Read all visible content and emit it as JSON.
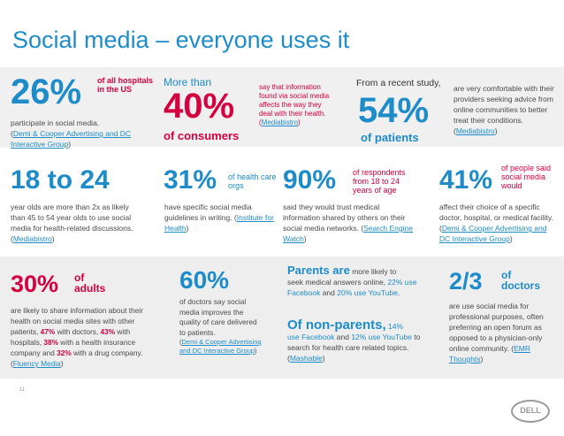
{
  "title": "Social media – everyone uses it",
  "s1": {
    "big": "26%",
    "side": "of all hospitals in the US",
    "desc": "participate in social media.",
    "src": "Demi & Cooper Advertising and DC Interactive Group",
    "open": "(",
    "close": ")"
  },
  "s2": {
    "more": "More than",
    "big": "40%",
    "sub": "of consumers",
    "desc": "say that information found via social media affects the way they deal with their health.",
    "src": "Mediabistro",
    "open": "(",
    "close": ")"
  },
  "s3": {
    "lead": "From a recent study,",
    "big": "54%",
    "sub": "of patients",
    "desc": "are very comfortable with their providers seeking advice from online communities to better treat their conditions.",
    "src": "Mediabistro",
    "open": "(",
    "close": ")"
  },
  "s4": {
    "big": "18 to 24",
    "desc": "year olds are more than 2x as likely than 45 to 54 year olds to use social media for health-related discussions.",
    "src": "Mediabistro",
    "open": "(",
    "close": ")"
  },
  "s5": {
    "big": "31%",
    "side": "of health care orgs",
    "desc": "have specific social media guidelines in writing.",
    "src": "Institute for Health",
    "open": "(",
    "close": ")"
  },
  "s6": {
    "big": "90%",
    "side": "of respondents from 18 to 24 years of age",
    "desc": "said they would trust medical information shared by others on their social media networks.",
    "src": "Search Engine Watch",
    "open": "(",
    "close": ")"
  },
  "s7": {
    "big": "41%",
    "side": "of people said social media would",
    "desc": "affect their choice of a specific doctor, hospital, or medical facility.",
    "src": "Demi & Cooper Advertising and DC Interactive Group",
    "open": "(",
    "close": ")"
  },
  "s8": {
    "big": "30%",
    "side1": "of",
    "side2": "adults",
    "t1": "are likely to share information about their health on social media sites with other patients, ",
    "b1": "47%",
    "t2": " with doctors, ",
    "b2": "43%",
    "t3": " with hospitals, ",
    "b3": "38%",
    "t4": " with a health insurance company and ",
    "b4": "32%",
    "t5": " with a drug company.",
    "src": "Fluency Media",
    "open": " (",
    "close": ")"
  },
  "s9": {
    "big": "60%",
    "desc": "of doctors say social media improves the quality of care delivered to patients.",
    "src": "Demi & Cooper Advertising and DC Interactive Group",
    "open": "(",
    "close": ")"
  },
  "s10": {
    "head": "Parents are",
    "head_tail": " more likely to",
    "t1": "seek medical answers online, ",
    "hl1": "22% use Facebook",
    "t2": " and ",
    "hl2": "20% use YouTube",
    "t3": ".",
    "head2": "Of non-parents,",
    "head2_tail": " 14%",
    "hl3": "use Facebook",
    "t4": " and ",
    "hl4": "12% use YouTube",
    "t5": " to search for health care related topics.",
    "src": "Mashable",
    "open": " (",
    "close": ")"
  },
  "s11": {
    "big": "2/3",
    "side1": "of",
    "side2": "doctors",
    "desc": "are use social media for professional purposes, often preferring an open forum as opposed to a physician-only online community.",
    "src": "EMR Thoughts",
    "open": " (",
    "close": ")"
  },
  "page_number": "11",
  "logo_text": "DELL"
}
